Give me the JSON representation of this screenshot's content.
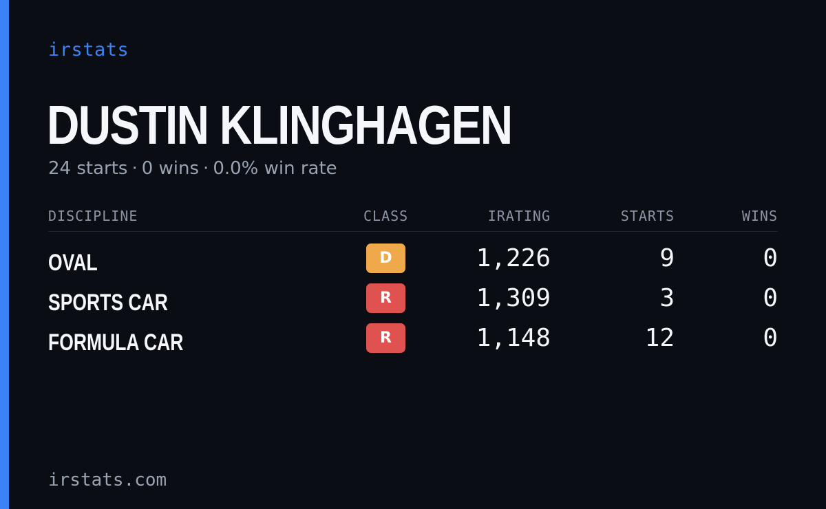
{
  "brand": "irstats",
  "driver": {
    "name": "DUSTIN KLINGHAGEN",
    "starts_text": "24 starts",
    "wins_text": "0 wins",
    "win_rate_text": "0.0% win rate",
    "separator": "·"
  },
  "table": {
    "headers": {
      "discipline": "DISCIPLINE",
      "class": "CLASS",
      "irating": "IRATING",
      "starts": "STARTS",
      "wins": "WINS"
    },
    "rows": [
      {
        "discipline": "OVAL",
        "class": "D",
        "irating": "1,226",
        "starts": "9",
        "wins": "0"
      },
      {
        "discipline": "SPORTS CAR",
        "class": "R",
        "irating": "1,309",
        "starts": "3",
        "wins": "0"
      },
      {
        "discipline": "FORMULA CAR",
        "class": "R",
        "irating": "1,148",
        "starts": "12",
        "wins": "0"
      }
    ]
  },
  "footer": "irstats.com",
  "colors": {
    "background": "#0a0d14",
    "accent": "#3b82f6",
    "class_d": "#f0a94a",
    "class_r": "#e0524f"
  }
}
